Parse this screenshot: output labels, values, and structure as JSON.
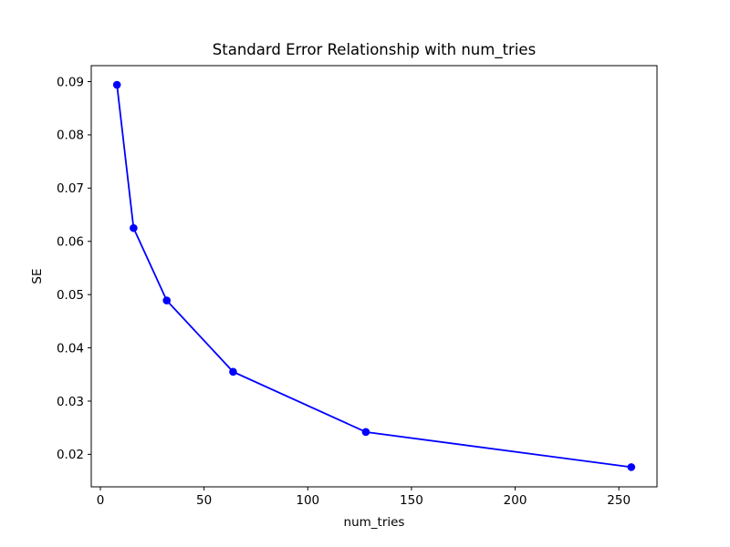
{
  "figure": {
    "background_color": "#ffffff"
  },
  "chart_data": {
    "type": "line",
    "title": "Standard Error Relationship with num_tries",
    "xlabel": "num_tries",
    "ylabel": "SE",
    "series": [
      {
        "name": "SE",
        "x": [
          8,
          16,
          32,
          64,
          128,
          256
        ],
        "y": [
          0.0894,
          0.0625,
          0.0489,
          0.0355,
          0.0242,
          0.0176
        ]
      }
    ],
    "x": [
      8,
      16,
      32,
      64,
      128,
      256
    ],
    "y": [
      0.0894,
      0.0625,
      0.0489,
      0.0355,
      0.0242,
      0.0176
    ],
    "line_color": "#0000ff",
    "marker_color": "#0000ff",
    "marker": "o",
    "xticks": [
      0,
      50,
      100,
      150,
      200,
      250
    ],
    "xtick_labels": [
      "0",
      "50",
      "100",
      "150",
      "200",
      "250"
    ],
    "yticks": [
      0.02,
      0.03,
      0.04,
      0.05,
      0.06,
      0.07,
      0.08,
      0.09
    ],
    "ytick_labels": [
      "0.02",
      "0.03",
      "0.04",
      "0.05",
      "0.06",
      "0.07",
      "0.08",
      "0.09"
    ],
    "xlim": [
      -4.4,
      268.4
    ],
    "ylim": [
      0.0139,
      0.093
    ],
    "grid": false,
    "legend": "none",
    "frame_color": "#000000"
  }
}
